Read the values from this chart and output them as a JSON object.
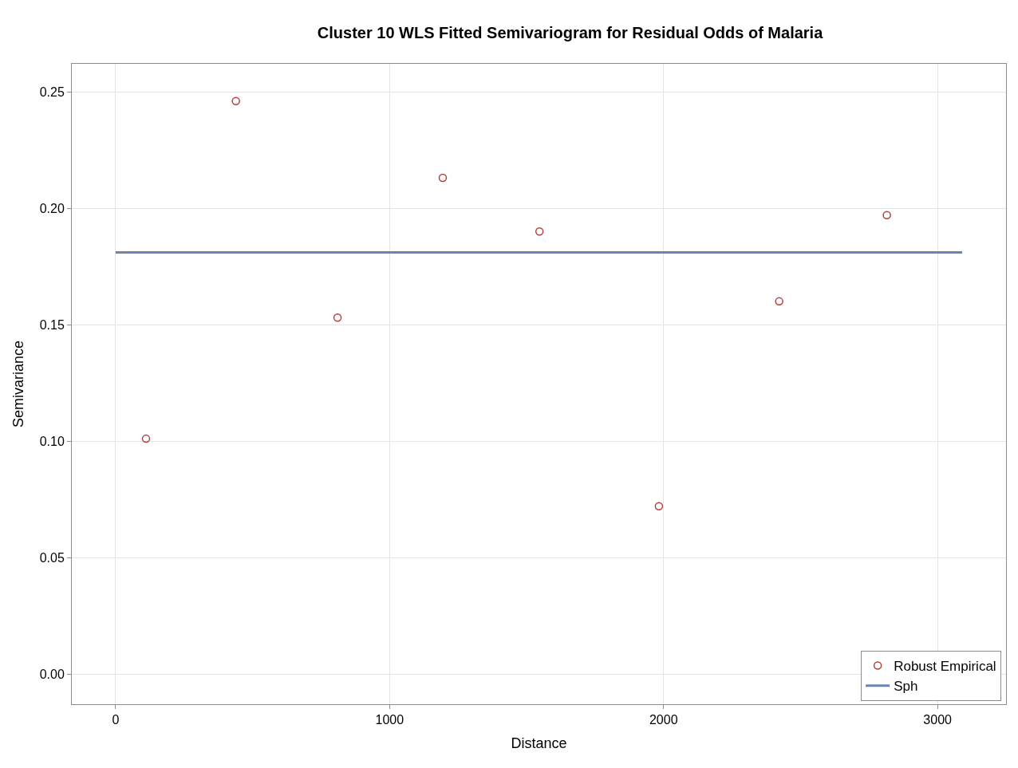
{
  "chart_data": {
    "type": "scatter",
    "title": "Cluster 10 WLS Fitted Semivariogram for Residual Odds of Malaria",
    "xlabel": "Distance",
    "ylabel": "Semivariance",
    "series": [
      {
        "name": "Robust Empirical",
        "color": "#b2403a",
        "marker": "circle",
        "x": [
          111,
          439,
          810,
          1194,
          1547,
          1983,
          2422,
          2815
        ],
        "values": [
          0.101,
          0.246,
          0.153,
          0.213,
          0.19,
          0.072,
          0.16,
          0.197
        ]
      },
      {
        "name": "Sph",
        "type": "line",
        "color": "#6b84ad",
        "marker": "none",
        "line_style": "solid",
        "x": [
          0,
          3090
        ],
        "values": [
          0.181,
          0.181
        ]
      }
    ],
    "xlim": [
      -160,
      3250
    ],
    "xticks": [
      0,
      1000,
      2000,
      3000
    ],
    "ylim": [
      -0.013,
      0.262
    ],
    "yticks": [
      {
        "value": 0,
        "label": "0.00"
      },
      {
        "value": 0.05,
        "label": "0.05"
      },
      {
        "value": 0.1,
        "label": "0.10"
      },
      {
        "value": 0.15,
        "label": "0.15"
      },
      {
        "value": 0.2,
        "label": "0.20"
      },
      {
        "value": 0.25,
        "label": "0.25"
      }
    ],
    "grid": true,
    "legend": "bottom right"
  }
}
